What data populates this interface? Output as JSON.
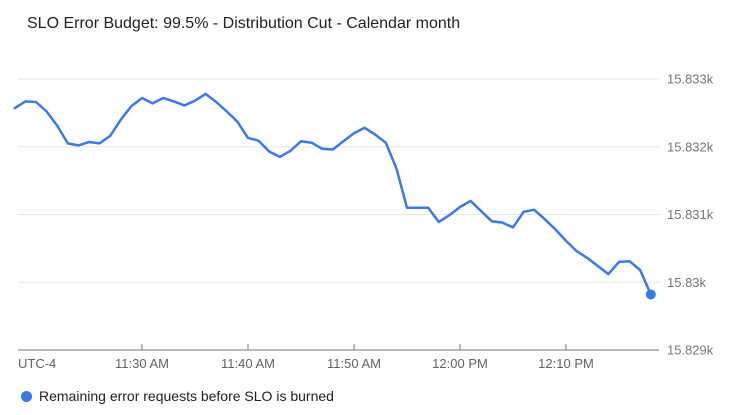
{
  "colors": {
    "line": "#3b78e7",
    "endpoint_dot": "#3b78e7",
    "grid": "#e6e6e6",
    "axis_line": "#757575",
    "tick": "#757575",
    "x_label": "#616161",
    "y_label": "#757575",
    "title": "#212121",
    "legend_text": "#212121",
    "background": "#ffffff"
  },
  "chart_data": {
    "type": "line",
    "title": "SLO Error Budget: 99.5% - Distribution Cut - Calendar month",
    "grid": true,
    "legend_position": "bottom-left",
    "x_axis": {
      "timezone_label": "UTC-4",
      "tick_labels": [
        "11:30 AM",
        "11:40 AM",
        "11:50 AM",
        "12:00 PM",
        "12:10 PM"
      ],
      "range_start": "11:18 AM",
      "range_end": "12:18 PM"
    },
    "y_axis": {
      "side": "right",
      "tick_labels": [
        "15.833k",
        "15.832k",
        "15.831k",
        "15.83k",
        "15.829k"
      ],
      "tick_values": [
        15833,
        15832,
        15831,
        15830,
        15829
      ],
      "ylim": [
        15829,
        15833.3
      ]
    },
    "series": [
      {
        "name": "Remaining error requests before SLO is burned",
        "color": "#3b78e7",
        "endpoint_marker": true,
        "x_times": [
          "11:18 AM",
          "11:19 AM",
          "11:20 AM",
          "11:21 AM",
          "11:22 AM",
          "11:23 AM",
          "11:24 AM",
          "11:25 AM",
          "11:26 AM",
          "11:27 AM",
          "11:28 AM",
          "11:29 AM",
          "11:30 AM",
          "11:31 AM",
          "11:32 AM",
          "11:33 AM",
          "11:34 AM",
          "11:35 AM",
          "11:36 AM",
          "11:37 AM",
          "11:38 AM",
          "11:39 AM",
          "11:40 AM",
          "11:41 AM",
          "11:42 AM",
          "11:43 AM",
          "11:44 AM",
          "11:45 AM",
          "11:46 AM",
          "11:47 AM",
          "11:48 AM",
          "11:49 AM",
          "11:50 AM",
          "11:51 AM",
          "11:52 AM",
          "11:53 AM",
          "11:54 AM",
          "11:55 AM",
          "11:56 AM",
          "11:57 AM",
          "11:58 AM",
          "11:59 AM",
          "12:00 PM",
          "12:01 PM",
          "12:02 PM",
          "12:03 PM",
          "12:04 PM",
          "12:05 PM",
          "12:06 PM",
          "12:07 PM",
          "12:08 PM",
          "12:09 PM",
          "12:10 PM",
          "12:11 PM",
          "12:12 PM",
          "12:13 PM",
          "12:14 PM",
          "12:15 PM",
          "12:16 PM",
          "12:17 PM",
          "12:18 PM"
        ],
        "values": [
          15832.57,
          15832.67,
          15832.66,
          15832.52,
          15832.31,
          15832.05,
          15832.02,
          15832.07,
          15832.05,
          15832.16,
          15832.4,
          15832.6,
          15832.72,
          15832.64,
          15832.72,
          15832.67,
          15832.61,
          15832.68,
          15832.78,
          15832.66,
          15832.52,
          15832.37,
          15832.13,
          15832.09,
          15831.93,
          15831.85,
          15831.94,
          15832.08,
          15832.06,
          15831.97,
          15831.96,
          15832.08,
          15832.2,
          15832.28,
          15832.18,
          15832.06,
          15831.68,
          15831.1,
          15831.1,
          15831.1,
          15830.89,
          15830.99,
          15831.11,
          15831.2,
          15831.05,
          15830.9,
          15830.88,
          15830.81,
          15831.04,
          15831.07,
          15830.93,
          15830.78,
          15830.61,
          15830.46,
          15830.36,
          15830.24,
          15830.12,
          15830.3,
          15830.31,
          15830.18,
          15829.82
        ]
      }
    ]
  }
}
